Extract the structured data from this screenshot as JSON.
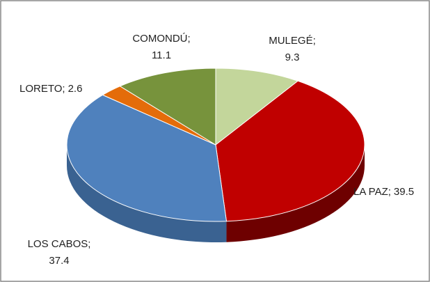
{
  "chart_data": {
    "type": "pie3d",
    "categories": [
      "MULEGÉ",
      "LA PAZ",
      "LOS CABOS",
      "LORETO",
      "COMONDÚ"
    ],
    "values": [
      9.3,
      39.5,
      37.4,
      2.6,
      11.1
    ],
    "colors": [
      "#c3d69b",
      "#c00000",
      "#4f81bd",
      "#e46c0a",
      "#77933c"
    ],
    "side_colors": [
      "#8fa46a",
      "#6e0000",
      "#3a6291",
      "#a44d06",
      "#55692a"
    ],
    "label_separator": ";"
  }
}
